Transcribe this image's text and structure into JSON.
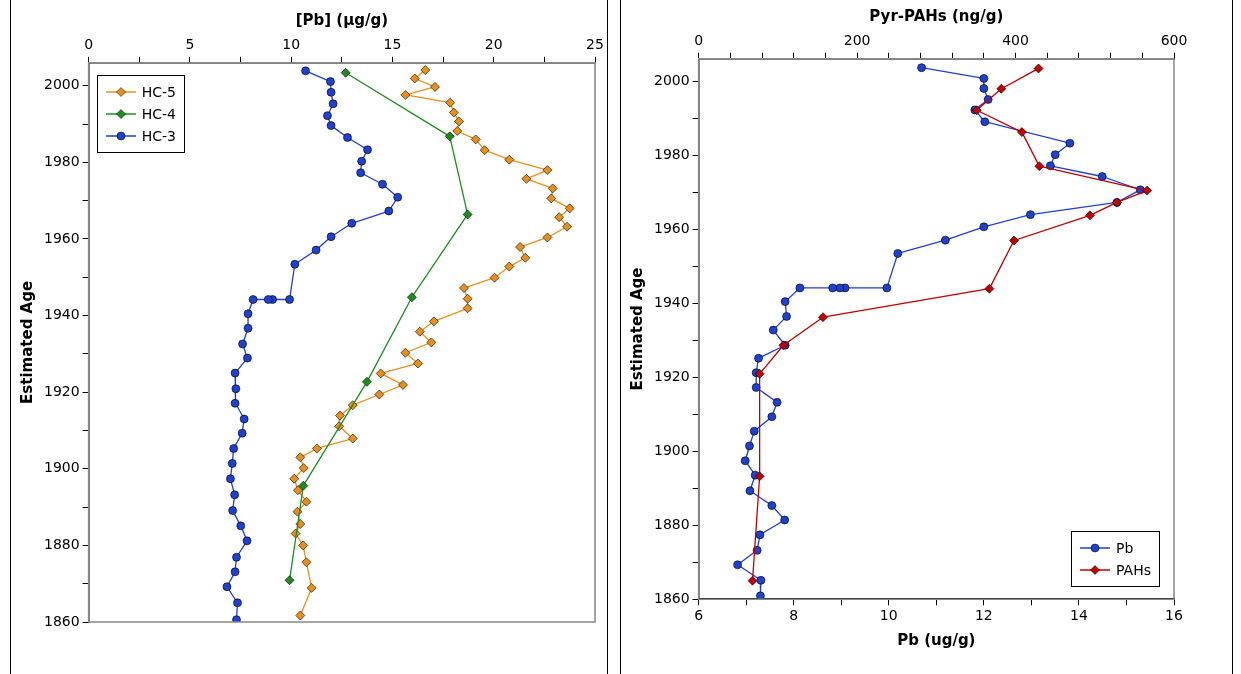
{
  "chart_data": [
    {
      "type": "line",
      "xlabel": "[Pb] (μg/g)",
      "ylabel": "Estimated Age",
      "xlim": [
        0,
        25
      ],
      "xticks": [
        0,
        {
          "value": 2.5,
          "label": null
        },
        5,
        {
          "value": 7.5,
          "label": null
        },
        10,
        {
          "value": 12.5,
          "label": null
        },
        15,
        {
          "value": 17.5,
          "label": null
        },
        20,
        {
          "value": 22.5,
          "label": null
        },
        25
      ],
      "ylim": [
        1860,
        2006
      ],
      "yticks": [
        1860,
        {
          "value": 1870,
          "label": null
        },
        1880,
        {
          "value": 1890,
          "label": null
        },
        1900,
        {
          "value": 1910,
          "label": null
        },
        1920,
        {
          "value": 1930,
          "label": null
        },
        1940,
        {
          "value": 1950,
          "label": null
        },
        1960,
        {
          "value": 1970,
          "label": null
        },
        1980,
        {
          "value": 1990,
          "label": null
        },
        2000
      ],
      "grid": false,
      "legend": "top left",
      "series": [
        {
          "name": "HC-5",
          "color": "#e8901e",
          "marker": "diamond",
          "x": [
            16.62,
            16.1,
            17.1,
            15.64,
            17.85,
            18.03,
            18.29,
            18.2,
            19.11,
            19.55,
            20.77,
            22.65,
            21.61,
            22.91,
            22.84,
            23.75,
            23.23,
            23.62,
            22.65,
            21.3,
            21.56,
            20.77,
            20.04,
            18.53,
            18.71,
            18.71,
            17.05,
            16.35,
            16.92,
            15.64,
            16.26,
            14.42,
            15.52,
            14.35,
            13.04,
            12.41,
            12.37,
            13.04,
            11.27,
            10.45,
            10.62,
            10.15,
            10.33,
            10.75,
            10.31,
            10.45,
            10.22,
            10.59,
            10.75,
            11.01,
            10.45
          ],
          "values": [
            2004.1,
            2001.9,
            1999.7,
            1997.6,
            1995.6,
            1993,
            1990.7,
            1988.2,
            1986,
            1983.2,
            1980.7,
            1978,
            1975.7,
            1973.2,
            1970.6,
            1968,
            1965.7,
            1963.2,
            1960.4,
            1957.9,
            1955.1,
            1952.8,
            1949.9,
            1947.2,
            1944.4,
            1941.9,
            1938.5,
            1935.8,
            1933,
            1930.3,
            1927.5,
            1924.9,
            1921.9,
            1919.4,
            1916.6,
            1913.9,
            1911.1,
            1907.9,
            1905.3,
            1903,
            1900.2,
            1897.4,
            1894.4,
            1891.4,
            1888.8,
            1885.6,
            1883.1,
            1880,
            1875.6,
            1868.9,
            1861.7
          ]
        },
        {
          "name": "HC-4",
          "color": "#1e8c1e",
          "marker": "diamond",
          "x": [
            12.69,
            17.83,
            18.71,
            15.96,
            13.74,
            10.6,
            9.92
          ],
          "values": [
            2003.4,
            1986.8,
            1966.4,
            1944.8,
            1922.7,
            1895.6,
            1870.9
          ]
        },
        {
          "name": "HC-3",
          "color": "#2040d0",
          "marker": "circle",
          "x": [
            10.71,
            11.94,
            11.97,
            12.07,
            11.79,
            11.97,
            12.78,
            13.77,
            13.48,
            13.43,
            14.51,
            15.26,
            14.82,
            12.99,
            11.97,
            11.23,
            10.18,
            9.92,
            9.08,
            8.87,
            8.12,
            7.87,
            7.87,
            7.6,
            7.84,
            7.23,
            7.27,
            7.23,
            7.68,
            7.58,
            7.16,
            7.09,
            7,
            7.21,
            7.11,
            7.51,
            7.82,
            7.3,
            7.23,
            6.83,
            7.35,
            7.3
          ],
          "values": [
            2003.9,
            2001.1,
            1998.3,
            1995.3,
            1992.2,
            1989.6,
            1986.5,
            1983.3,
            1980.3,
            1977.3,
            1974.3,
            1970.9,
            1967.3,
            1964.1,
            1960.6,
            1957.1,
            1953.4,
            1944.2,
            1944.2,
            1944.2,
            1944.2,
            1940.5,
            1936.7,
            1932.6,
            1928.9,
            1925,
            1920.9,
            1917.1,
            1913,
            1909.3,
            1905.3,
            1901.4,
            1897.4,
            1893.2,
            1889.1,
            1885.1,
            1881.2,
            1876.9,
            1873.1,
            1869.2,
            1865,
            1860.6
          ]
        }
      ]
    },
    {
      "type": "line",
      "xlabel": "Pb (ug/g)",
      "x2label": "Pyr-PAHs (ng/g)",
      "ylabel": "Estimated Age",
      "xlim": [
        6,
        16
      ],
      "xticks": [
        6,
        {
          "value": 7,
          "label": null
        },
        8,
        {
          "value": 9,
          "label": null
        },
        10,
        {
          "value": 11,
          "label": null
        },
        12,
        {
          "value": 13,
          "label": null
        },
        14,
        {
          "value": 15,
          "label": null
        },
        16
      ],
      "x2lim": [
        0,
        600
      ],
      "x2ticks": [
        0,
        {
          "value": 40,
          "label": null
        },
        {
          "value": 80,
          "label": null
        },
        {
          "value": 120,
          "label": null
        },
        {
          "value": 160,
          "label": null
        },
        200,
        {
          "value": 240,
          "label": null
        },
        {
          "value": 280,
          "label": null
        },
        {
          "value": 320,
          "label": null
        },
        {
          "value": 360,
          "label": null
        },
        400,
        {
          "value": 440,
          "label": null
        },
        {
          "value": 480,
          "label": null
        },
        {
          "value": 520,
          "label": null
        },
        {
          "value": 560,
          "label": null
        },
        600
      ],
      "ylim": [
        1860,
        2006
      ],
      "yticks": [
        1860,
        {
          "value": 1870,
          "label": null
        },
        1880,
        {
          "value": 1890,
          "label": null
        },
        1900,
        {
          "value": 1910,
          "label": null
        },
        1920,
        {
          "value": 1930,
          "label": null
        },
        1940,
        {
          "value": 1950,
          "label": null
        },
        1960,
        {
          "value": 1970,
          "label": null
        },
        1980,
        {
          "value": 1990,
          "label": null
        },
        2000
      ],
      "grid": false,
      "legend": "bottom right",
      "series": [
        {
          "name": "Pb",
          "color": "#2040d0",
          "marker": "circle",
          "x": [
            10.69,
            12,
            12,
            12.09,
            11.81,
            12.02,
            13.81,
            13.5,
            13.4,
            14.49,
            15.29,
            14.8,
            12.98,
            12,
            11.19,
            10.19,
            9.96,
            9.08,
            8.97,
            8.82,
            8.13,
            7.82,
            7.85,
            7.57,
            7.82,
            7.26,
            7.21,
            7.21,
            7.65,
            7.54,
            7.17,
            7.07,
            6.98,
            7.19,
            7.08,
            7.54,
            7.81,
            7.29,
            7.23,
            6.82,
            7.31,
            7.3
          ],
          "values": [
            2003.6,
            2000.7,
            1998,
            1995,
            1992.2,
            1989,
            1983.2,
            1980.1,
            1977.1,
            1974.2,
            1970.6,
            1967.2,
            1963.9,
            1960.6,
            1957,
            1953.4,
            1944.1,
            1944.1,
            1944.1,
            1944.1,
            1944.1,
            1940.4,
            1936.4,
            1932.7,
            1928.6,
            1925.1,
            1921.2,
            1917.2,
            1913.2,
            1909.3,
            1905.4,
            1901.4,
            1897.4,
            1893.5,
            1889.3,
            1885.3,
            1881.4,
            1877.4,
            1873.2,
            1869.3,
            1865.1,
            1860.9
          ]
        },
        {
          "name": "PAHs",
          "color": "#c00000",
          "marker": "diamond",
          "axis": "x2",
          "x": [
            429,
            382,
            351,
            408,
            430,
            566,
            528,
            494,
            398,
            367,
            157,
            107,
            77,
            77,
            68
          ],
          "values": [
            2003.4,
            1997.9,
            1992.1,
            1986.2,
            1977,
            1970.4,
            1967.2,
            1963.7,
            1956.9,
            1943.9,
            1936.2,
            1928.6,
            1920.9,
            1893.2,
            1865
          ]
        }
      ]
    }
  ]
}
